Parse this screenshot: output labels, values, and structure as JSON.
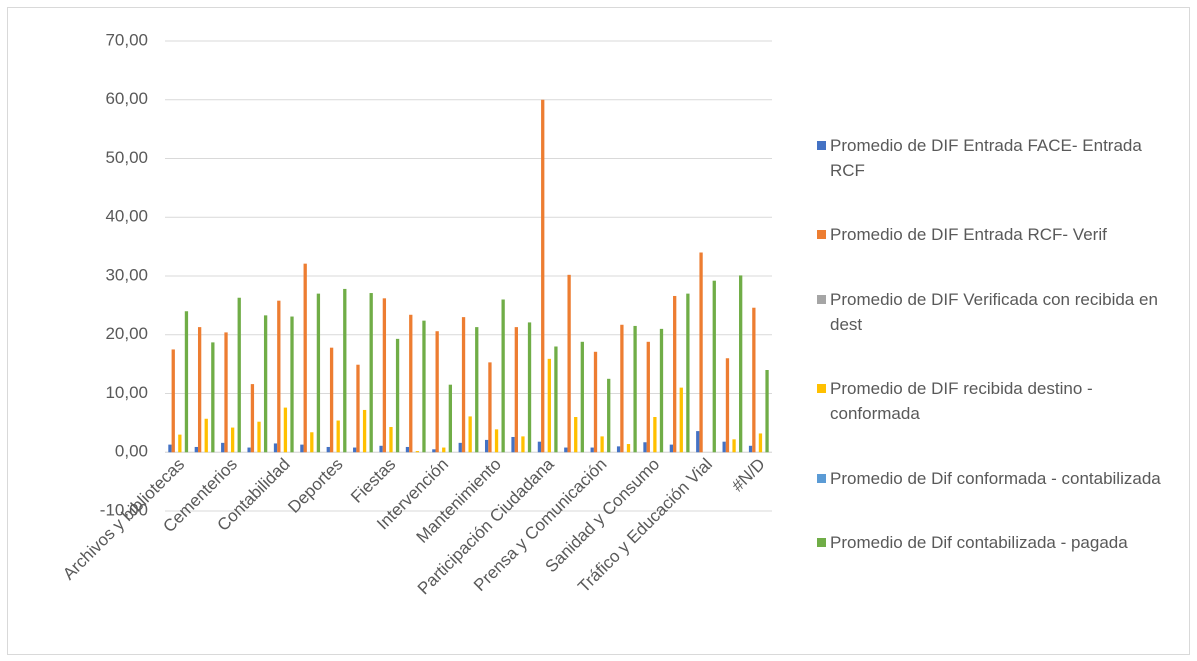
{
  "chart_data": {
    "type": "bar",
    "categories": [
      "Archivos y bibliotecas",
      null,
      "Cementerios",
      null,
      "Contabilidad",
      null,
      "Deportes",
      null,
      "Fiestas",
      null,
      "Intervención",
      null,
      "Mantenimiento",
      null,
      "Participación Ciudadana",
      null,
      "Prensa y Comunicación",
      null,
      "Sanidad y Consumo",
      null,
      "Tráfico y Educación Vial",
      null,
      "#N/D"
    ],
    "series": [
      {
        "name": "Promedio de DIF Entrada FACE- Entrada RCF",
        "color": "#4472c4",
        "values": [
          1.3,
          0.9,
          1.6,
          0.8,
          1.5,
          1.3,
          0.9,
          0.8,
          1.1,
          0.9,
          0.5,
          1.6,
          2.1,
          2.6,
          1.8,
          0.8,
          0.8,
          1.0,
          1.7,
          1.3,
          3.6,
          1.8,
          1.1
        ]
      },
      {
        "name": "Promedio de DIF Entrada RCF- Verif",
        "color": "#ed7d31",
        "values": [
          17.5,
          21.3,
          20.4,
          11.6,
          25.8,
          32.1,
          17.8,
          14.9,
          26.2,
          23.4,
          20.6,
          23.0,
          15.3,
          21.3,
          60.0,
          30.2,
          17.1,
          21.7,
          18.8,
          26.6,
          34.0,
          16.0,
          24.6
        ]
      },
      {
        "name": "Promedio de DIF Verificada con recibida en dest",
        "color": "#a5a5a5",
        "values": [
          0,
          0,
          0,
          0,
          0,
          0,
          0,
          0,
          0,
          0,
          0,
          0,
          0,
          0,
          0,
          0,
          0,
          0,
          0,
          0,
          0,
          0,
          0
        ]
      },
      {
        "name": "Promedio de DIF recibida destino - conformada",
        "color": "#ffc000",
        "values": [
          3.0,
          5.7,
          4.2,
          5.2,
          7.6,
          3.4,
          5.4,
          7.2,
          4.3,
          0.2,
          0.8,
          6.1,
          3.9,
          2.7,
          15.9,
          6.0,
          2.7,
          1.4,
          6.0,
          11.0,
          0,
          2.2,
          3.2
        ]
      },
      {
        "name": "Promedio de Dif conformada - contabilizada",
        "color": "#5b9bd5",
        "values": [
          0,
          0,
          0,
          0,
          0,
          0,
          0,
          0,
          0,
          0,
          0,
          0,
          0,
          0,
          0,
          0,
          0,
          0,
          0,
          0,
          0,
          0,
          0
        ]
      },
      {
        "name": "Promedio de Dif contabilizada - pagada",
        "color": "#70ad47",
        "values": [
          24.0,
          18.7,
          26.3,
          23.3,
          23.1,
          27.0,
          27.8,
          27.1,
          19.3,
          22.4,
          11.5,
          21.3,
          26.0,
          22.1,
          18.0,
          18.8,
          12.5,
          21.5,
          21.0,
          27.0,
          29.2,
          30.1,
          14.0
        ]
      }
    ],
    "ylim": [
      -10,
      70
    ],
    "yticks": [
      {
        "value": -10,
        "label": "-10,00"
      },
      {
        "value": 0,
        "label": "0,00"
      },
      {
        "value": 10,
        "label": "10,00"
      },
      {
        "value": 20,
        "label": "20,00"
      },
      {
        "value": 30,
        "label": "30,00"
      },
      {
        "value": 40,
        "label": "40,00"
      },
      {
        "value": 50,
        "label": "50,00"
      },
      {
        "value": 60,
        "label": "60,00"
      },
      {
        "value": 70,
        "label": "70,00"
      }
    ],
    "grid": true,
    "legend": "right"
  }
}
